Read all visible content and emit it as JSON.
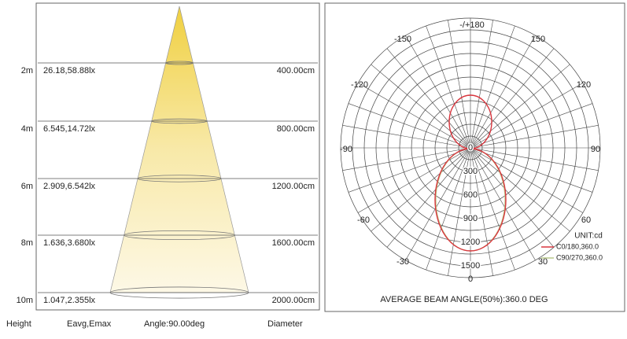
{
  "left": {
    "rows": [
      {
        "height": "2m",
        "illuminance": "26.18,58.88lx",
        "diameter": "400.00cm"
      },
      {
        "height": "4m",
        "illuminance": "6.545,14.72lx",
        "diameter": "800.00cm"
      },
      {
        "height": "6m",
        "illuminance": "2.909,6.542lx",
        "diameter": "1200.00cm"
      },
      {
        "height": "8m",
        "illuminance": "1.636,3.680lx",
        "diameter": "1600.00cm"
      },
      {
        "height": "10m",
        "illuminance": "1.047,2.355lx",
        "diameter": "2000.00cm"
      }
    ],
    "footer": {
      "height": "Height",
      "eavg_emax": "Eavg,Emax",
      "angle": "Angle:90.00deg",
      "diameter": "Diameter"
    }
  },
  "right": {
    "angle_labels": [
      "-/+180",
      "-150",
      "150",
      "-120",
      "120",
      "-90",
      "90",
      "-60",
      "60",
      "-30",
      "30",
      "0"
    ],
    "radial_labels": [
      "0",
      "300",
      "600",
      "900",
      "1200",
      "1500"
    ],
    "unit": "UNIT:cd",
    "legend": [
      {
        "name": "C0/180,360.0",
        "color": "#d9363e"
      },
      {
        "name": "C90/270,360.0",
        "color": "#b8c98a"
      }
    ],
    "beam_angle": "AVERAGE BEAM ANGLE(50%):360.0 DEG"
  }
}
